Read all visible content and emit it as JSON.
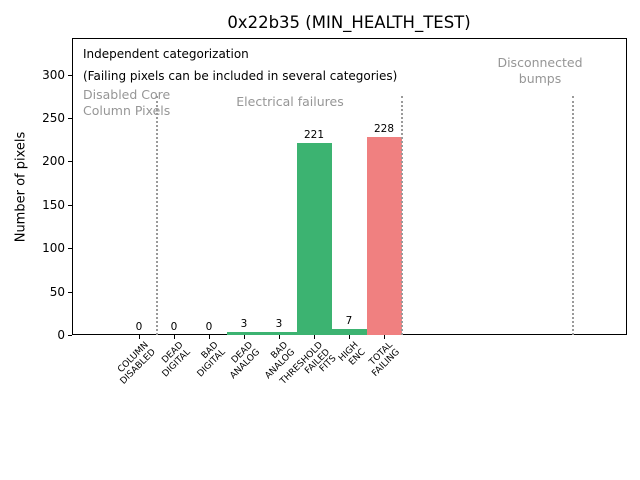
{
  "chart_data": {
    "type": "bar",
    "title": "0x22b35 (MIN_HEALTH_TEST)",
    "xlabel": "",
    "ylabel": "Number of pixels",
    "ylim": [
      0,
      342
    ],
    "yticks": [
      0,
      50,
      100,
      150,
      200,
      250,
      300
    ],
    "grid": false,
    "legend": "none",
    "categories": [
      "COLUMN DISABLED",
      "DEAD DIGITAL",
      "BAD DIGITAL",
      "DEAD ANALOG",
      "BAD ANALOG",
      "THRESHOLD FAILED FITS",
      "HIGH ENC",
      "TOTAL FAILING"
    ],
    "category_lines": [
      [
        "COLUMN",
        "DISABLED"
      ],
      [
        "DEAD",
        "DIGITAL"
      ],
      [
        "BAD",
        "DIGITAL"
      ],
      [
        "DEAD",
        "ANALOG"
      ],
      [
        "BAD",
        "ANALOG"
      ],
      [
        "THRESHOLD",
        "FAILED",
        "FITS"
      ],
      [
        "HIGH",
        "ENC"
      ],
      [
        "TOTAL",
        "FAILING"
      ]
    ],
    "values": [
      0,
      0,
      0,
      3,
      3,
      221,
      7,
      228
    ],
    "bar_colors": [
      "#3cb371",
      "#3cb371",
      "#3cb371",
      "#3cb371",
      "#3cb371",
      "#3cb371",
      "#3cb371",
      "#f08080"
    ],
    "colors": {
      "pass_green": "#3cb371",
      "fail_red": "#f08080",
      "annotation_gray": "#969696",
      "separator_gray": "#9a9a9a"
    },
    "separators": {
      "positions_category_units": [
        0.5,
        7.5,
        12.4
      ],
      "top_value": 275
    },
    "annotations": {
      "independent_line1": "Independent categorization",
      "independent_line2": "(Failing pixels can be included in several categories)",
      "disabled_core_lines": [
        "Disabled Core",
        "Column Pixels"
      ],
      "electrical": "Electrical failures",
      "disconnected_lines": [
        "Disconnected",
        "bumps"
      ]
    }
  }
}
